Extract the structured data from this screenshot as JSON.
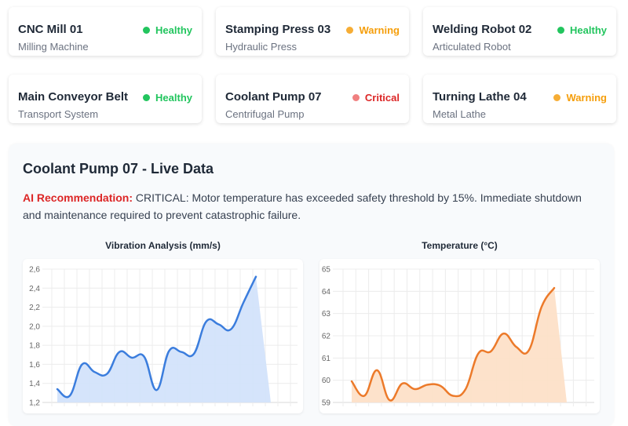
{
  "machines": [
    {
      "name": "CNC Mill 01",
      "type": "Milling Machine",
      "status": "Healthy",
      "status_color": "#22c55e",
      "dot_color": "#22c55e"
    },
    {
      "name": "Stamping Press 03",
      "type": "Hydraulic Press",
      "status": "Warning",
      "status_color": "#f59e0b",
      "dot_color": "#f6ad35"
    },
    {
      "name": "Welding Robot 02",
      "type": "Articulated Robot",
      "status": "Healthy",
      "status_color": "#22c55e",
      "dot_color": "#22c55e"
    },
    {
      "name": "Main Conveyor Belt",
      "type": "Transport System",
      "status": "Healthy",
      "status_color": "#22c55e",
      "dot_color": "#22c55e"
    },
    {
      "name": "Coolant Pump 07",
      "type": "Centrifugal Pump",
      "status": "Critical",
      "status_color": "#dc2626",
      "dot_color": "#f08080"
    },
    {
      "name": "Turning Lathe 04",
      "type": "Metal Lathe",
      "status": "Warning",
      "status_color": "#f59e0b",
      "dot_color": "#f6ad35"
    }
  ],
  "detail": {
    "title": "Coolant Pump 07 - Live Data",
    "recommendation_label": "AI Recommendation:",
    "recommendation_text": " CRITICAL: Motor temperature has exceeded safety threshold by 15%. Immediate shutdown and maintenance required to prevent catastrophic failure."
  },
  "chart_data": [
    {
      "type": "area",
      "title": "Vibration Analysis (mm/s)",
      "xlabel": "",
      "ylabel": "",
      "ylim": [
        1.2,
        2.6
      ],
      "yticks": [
        "2,6",
        "2,4",
        "2,2",
        "2,0",
        "1,8",
        "1,6",
        "1,4",
        "1,2"
      ],
      "grid": true,
      "legend": "none",
      "line_color": "#3b7ddd",
      "fill_color": "#d3e3fb",
      "values": [
        1.34,
        1.27,
        1.6,
        1.52,
        1.5,
        1.73,
        1.67,
        1.68,
        1.33,
        1.74,
        1.73,
        1.71,
        2.05,
        2.02,
        1.97,
        2.25,
        2.52
      ]
    },
    {
      "type": "area",
      "title": "Temperature (°C)",
      "xlabel": "",
      "ylabel": "",
      "ylim": [
        59,
        65
      ],
      "yticks": [
        "65",
        "64",
        "63",
        "62",
        "61",
        "60",
        "59"
      ],
      "grid": true,
      "legend": "none",
      "line_color": "#ec7a2a",
      "fill_color": "#fde0c8",
      "values": [
        59.95,
        59.3,
        60.45,
        59.1,
        59.85,
        59.6,
        59.8,
        59.75,
        59.3,
        59.6,
        61.2,
        61.3,
        62.1,
        61.5,
        61.35,
        63.3,
        64.15
      ]
    }
  ]
}
